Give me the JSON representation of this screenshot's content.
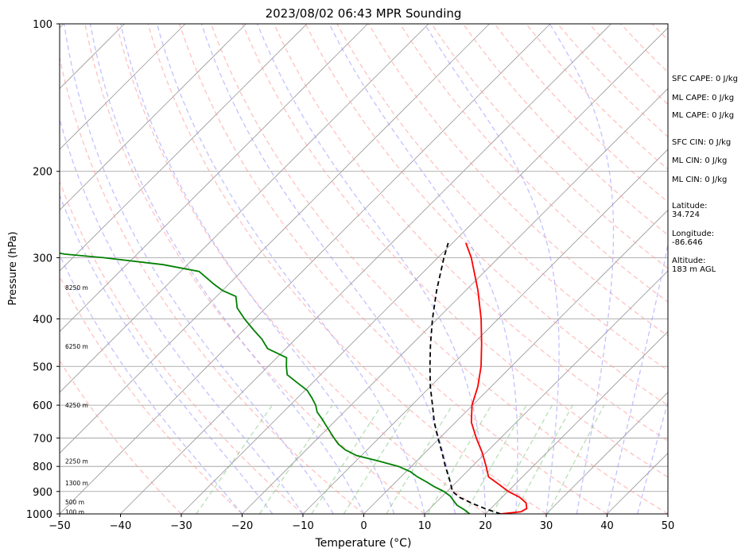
{
  "chart_data": {
    "type": "line",
    "title": "2023/08/02 06:43 MPR Sounding",
    "xlabel": "Temperature (°C)",
    "ylabel": "Pressure (hPa)",
    "xlim": [
      -50,
      50
    ],
    "ylim": [
      1000,
      100
    ],
    "yscale": "log",
    "skew": true,
    "grid": true,
    "x_ticks": [
      "−50",
      "−40",
      "−30",
      "−20",
      "−10",
      "0",
      "10",
      "20",
      "30",
      "40",
      "50"
    ],
    "y_ticks": [
      "100",
      "200",
      "300",
      "400",
      "500",
      "600",
      "700",
      "800",
      "900",
      "1000"
    ],
    "height_labels": [
      "8250 m",
      "6250 m",
      "4250 m",
      "2250 m",
      "1300 m",
      "500 m",
      "100 m"
    ],
    "height_label_pressures": [
      345,
      455,
      600,
      780,
      865,
      945,
      990
    ],
    "side_notes": [
      "SFC CAPE: 0 J/kg",
      "ML CAPE: 0 J/kg",
      "ML CAPE: 0 J/kg",
      "SFC CIN: 0 J/kg",
      "ML CIN: 0 J/kg",
      "ML CIN: 0 J/kg",
      "Latitude:",
      "34.724",
      "Longitude:",
      "-86.646",
      "Altitude:",
      "183 m AGL"
    ],
    "colors": {
      "temperature": "#ff0000",
      "dewpoint": "#008000",
      "parcel": "#000000",
      "dry_adiabat": "#ff9999",
      "moist_adiabat": "#9999ff",
      "mixing_ratio": "#88cc88",
      "isotherm": "#999999"
    },
    "series": [
      {
        "name": "Temperature",
        "pressure": [
          1000,
          990,
          975,
          950,
          925,
          900,
          870,
          840,
          800,
          750,
          700,
          650,
          600,
          550,
          500,
          450,
          400,
          350,
          300,
          280
        ],
        "values": [
          22.5,
          25.5,
          25.9,
          24.9,
          22.9,
          20.1,
          17.3,
          14.4,
          12.3,
          9.4,
          6.0,
          2.6,
          -0.1,
          -2.2,
          -5.0,
          -8.6,
          -12.8,
          -18.0,
          -24.5,
          -27.8
        ]
      },
      {
        "name": "Dewpoint",
        "pressure": [
          1000,
          980,
          960,
          940,
          920,
          900,
          880,
          860,
          840,
          820,
          800,
          780,
          760,
          740,
          720,
          700,
          670,
          640,
          620,
          600,
          580,
          560,
          540,
          520,
          500,
          480,
          460,
          440,
          420,
          400,
          380,
          360,
          350,
          340,
          320,
          310,
          300,
          295,
          285
        ],
        "values": [
          17.4,
          15.8,
          13.9,
          12.6,
          11.3,
          9.5,
          7.1,
          5.0,
          2.7,
          0.7,
          -2.1,
          -6.3,
          -10.8,
          -13.6,
          -15.7,
          -17.4,
          -19.9,
          -22.5,
          -24.4,
          -25.8,
          -27.6,
          -29.6,
          -32.5,
          -35.5,
          -37.0,
          -38.4,
          -43.0,
          -45.5,
          -48.6,
          -51.7,
          -54.7,
          -56.8,
          -60.0,
          -62.4,
          -67.0,
          -74.0,
          -85.0,
          -92.0,
          -99.0
        ]
      },
      {
        "name": "Parcel",
        "pressure": [
          1000,
          975,
          950,
          925,
          900,
          850,
          800,
          750,
          700,
          650,
          600,
          550,
          500,
          450,
          400,
          350,
          300,
          280
        ],
        "values": [
          22.5,
          19.0,
          15.9,
          13.0,
          10.9,
          8.4,
          5.6,
          2.8,
          -0.3,
          -3.5,
          -6.6,
          -10.0,
          -13.4,
          -17.0,
          -20.8,
          -24.8,
          -29.0,
          -30.7
        ]
      }
    ]
  }
}
